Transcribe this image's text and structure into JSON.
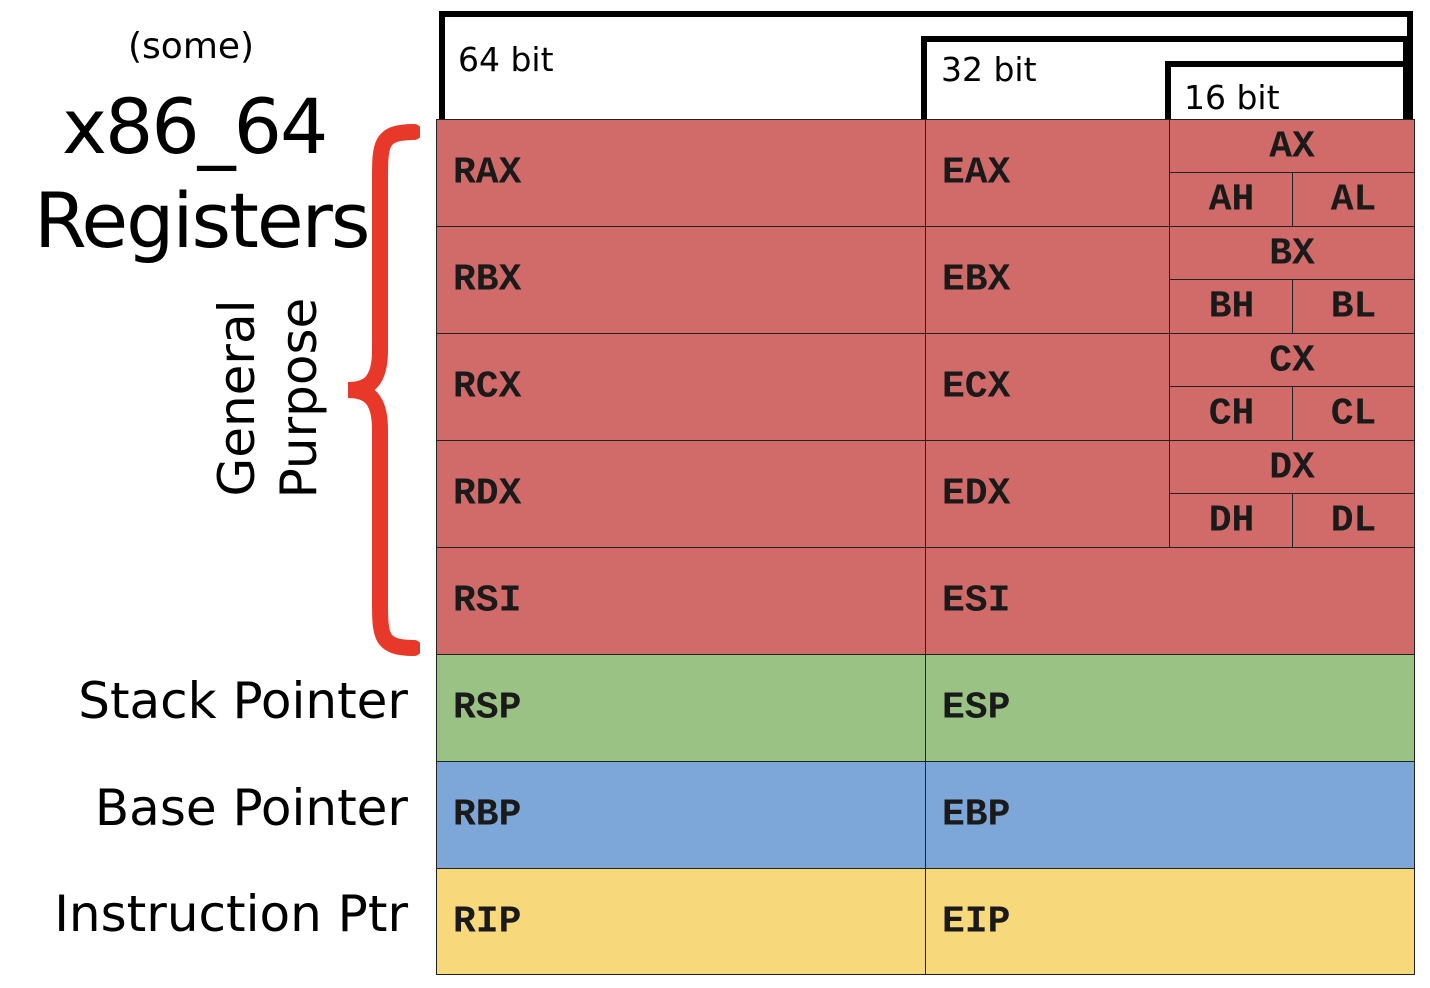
{
  "title": {
    "some": "(some)",
    "line1": "x86_64",
    "line2": "Registers"
  },
  "group_label": {
    "line1": "General",
    "line2": "Purpose"
  },
  "widths": {
    "b64": "64 bit",
    "b32": "32 bit",
    "b16": "16 bit"
  },
  "colors": {
    "general": "#d16b69",
    "stack": "#9bc285",
    "base": "#7da7d8",
    "instruction": "#f7d87a",
    "brace": "#e8382a"
  },
  "rows": [
    {
      "r64": "RAX",
      "r32": "EAX",
      "r16": "AX",
      "hi": "AH",
      "lo": "AL"
    },
    {
      "r64": "RBX",
      "r32": "EBX",
      "r16": "BX",
      "hi": "BH",
      "lo": "BL"
    },
    {
      "r64": "RCX",
      "r32": "ECX",
      "r16": "CX",
      "hi": "CH",
      "lo": "CL"
    },
    {
      "r64": "RDX",
      "r32": "EDX",
      "r16": "DX",
      "hi": "DH",
      "lo": "DL"
    },
    {
      "r64": "RSI",
      "r32": "ESI"
    },
    {
      "r64": "RSP",
      "r32": "ESP",
      "label": "Stack Pointer"
    },
    {
      "r64": "RBP",
      "r32": "EBP",
      "label": "Base Pointer"
    },
    {
      "r64": "RIP",
      "r32": "EIP",
      "label": "Instruction Ptr"
    }
  ]
}
